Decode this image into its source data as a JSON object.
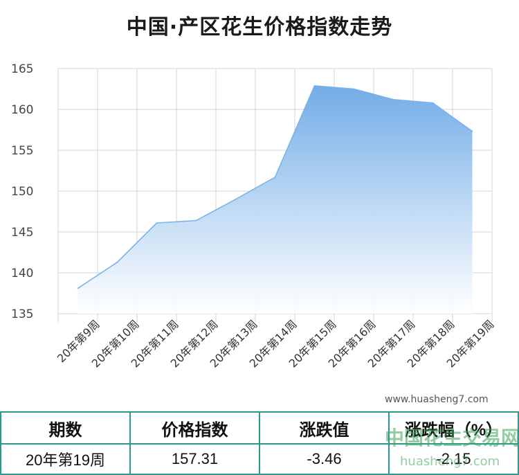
{
  "chart_data": {
    "type": "area",
    "title": "中国·产区花生价格指数走势",
    "categories": [
      "20年第9周",
      "20年第10周",
      "20年第11周",
      "20年第12周",
      "20年第13周",
      "20年第14周",
      "20年第15周",
      "20年第16周",
      "20年第17周",
      "20年第18周",
      "20年第19周"
    ],
    "values": [
      138.1,
      141.3,
      146.1,
      146.4,
      149.0,
      151.7,
      162.9,
      162.5,
      161.2,
      160.8,
      157.31
    ],
    "ylim": [
      135,
      165
    ],
    "yticks": [
      135,
      140,
      145,
      150,
      155,
      160,
      165
    ],
    "grid": true,
    "colors": {
      "line": "#7ab3e8",
      "fill_top": "#6aa8e6",
      "fill_bottom": "#ffffff"
    }
  },
  "watermark": {
    "url": "www.huasheng7.com",
    "logo_cn": "中国花生交易网",
    "logo_url": "huasheng7.com"
  },
  "table": {
    "headers": [
      "期数",
      "价格指数",
      "涨跌值",
      "涨跌幅（%）"
    ],
    "row": [
      "20年第19周",
      "157.31",
      "-3.46",
      "-2.15"
    ]
  }
}
